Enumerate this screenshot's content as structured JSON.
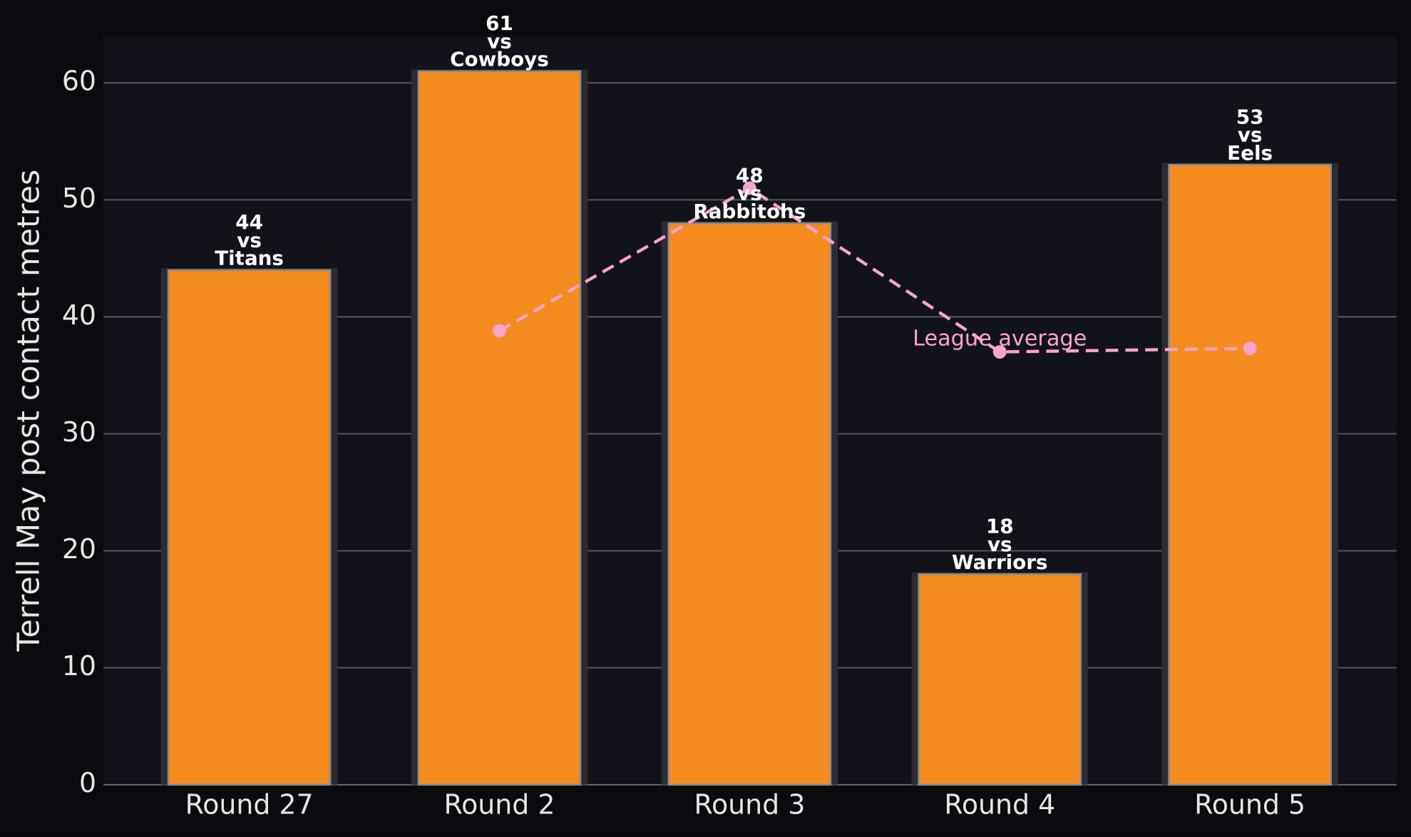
{
  "chart_data": {
    "type": "bar",
    "y_label": "Terrell May post contact metres",
    "categories": [
      "Round 27",
      "Round 2",
      "Round 3",
      "Round 4",
      "Round 5"
    ],
    "values": [
      44,
      61,
      48,
      18,
      53
    ],
    "value_labels": [
      "44\nvs\nTitans",
      "61\nvs\nCowboys",
      "48\nvs\nRabbitohs",
      "18\nvs\nWarriors",
      "53\nvs\nEels"
    ],
    "color": "#f68c1f",
    "line": {
      "name": "League average",
      "color": "#f9a3cf",
      "values": [
        null,
        38.8,
        51,
        37,
        37.3
      ]
    },
    "ylim": [
      0,
      64
    ],
    "yticks": [
      0,
      10,
      20,
      30,
      40,
      50,
      60
    ],
    "grid": true
  }
}
